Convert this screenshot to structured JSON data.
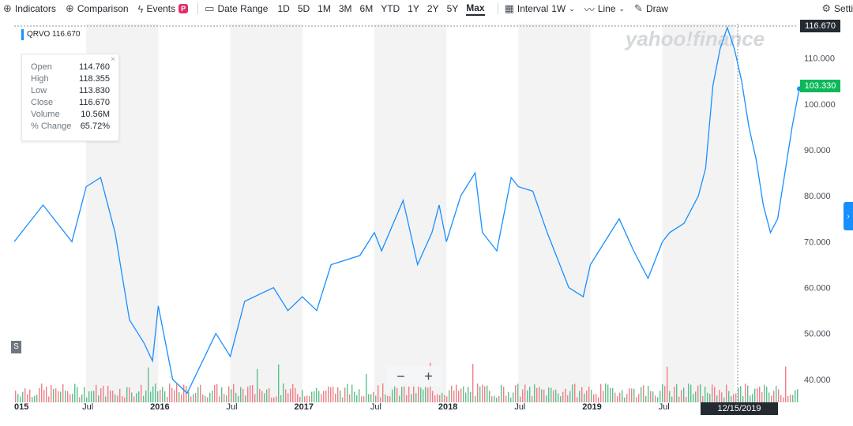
{
  "toolbar": {
    "indicators": "Indicators",
    "comparison": "Comparison",
    "events": "Events",
    "events_badge": "P",
    "date_range": "Date Range",
    "ranges": [
      "1D",
      "5D",
      "1M",
      "3M",
      "6M",
      "YTD",
      "1Y",
      "2Y",
      "5Y",
      "Max"
    ],
    "active_range": "Max",
    "interval_label": "Interval",
    "interval_value": "1W",
    "line_label": "Line",
    "draw_label": "Draw",
    "settings_label": "Setti"
  },
  "icons": {
    "indicators": "plus-circle-icon",
    "comparison": "plus-circle-icon",
    "events": "lightning-icon",
    "date_range": "calendar-icon",
    "interval": "ruler-icon",
    "line": "line-chart-icon",
    "draw": "pencil-icon",
    "settings": "gear-icon"
  },
  "watermark": "yahoo!finance",
  "symbol_label": "QRVO 116.670",
  "ohlc": {
    "open_label": "Open",
    "open": "114.760",
    "high_label": "High",
    "high": "118.355",
    "low_label": "Low",
    "low": "113.830",
    "close_label": "Close",
    "close": "116.670",
    "volume_label": "Volume",
    "volume": "10.56M",
    "change_label": "% Change",
    "change": "65.72%"
  },
  "crosshair_price": "116.670",
  "last_price": "103.330",
  "crosshair_date": "12/15/2019",
  "zoom": {
    "minus": "−",
    "plus": "+"
  },
  "s_tag": "S",
  "colors": {
    "line": "#188fff",
    "band": "#f3f3f4",
    "vol_up": "#5dbf8b",
    "vol_down": "#f07f87",
    "last_price": "#0cb859",
    "accent": "#188fff"
  },
  "chart_data": {
    "type": "line",
    "x_labels": [
      "015",
      "Jul",
      "2016",
      "Jul",
      "2017",
      "Jul",
      "2018",
      "Jul",
      "2019",
      "Jul"
    ],
    "y_ticks": [
      "40.000",
      "50.000",
      "60.000",
      "70.000",
      "80.000",
      "90.000",
      "100.000",
      "110.000"
    ],
    "ylim": [
      35,
      117
    ],
    "series": [
      {
        "x": [
          2015.0,
          2015.2,
          2015.4,
          2015.5,
          2015.6,
          2015.7,
          2015.8,
          2015.9,
          2015.96,
          2016.0,
          2016.1,
          2016.2,
          2016.4,
          2016.5,
          2016.6,
          2016.8,
          2016.9,
          2017.0,
          2017.1,
          2017.2,
          2017.4,
          2017.5,
          2017.55,
          2017.7,
          2017.8,
          2017.9,
          2017.95,
          2018.0,
          2018.1,
          2018.2,
          2018.25,
          2018.35,
          2018.45,
          2018.5,
          2018.6,
          2018.7,
          2018.85,
          2018.95,
          2019.0,
          2019.1,
          2019.2,
          2019.3,
          2019.4,
          2019.5,
          2019.55,
          2019.65,
          2019.75,
          2019.8,
          2019.85,
          2019.9,
          2019.95,
          2020.0,
          2020.05,
          2020.1,
          2020.15,
          2020.2,
          2020.25,
          2020.3,
          2020.35,
          2020.4,
          2020.45
        ],
        "y": [
          70,
          78,
          70,
          82,
          84,
          72,
          53,
          48,
          44,
          56,
          40,
          37,
          50,
          45,
          57,
          60,
          55,
          58,
          55,
          65,
          67,
          72,
          68,
          79,
          65,
          72,
          78,
          70,
          80,
          85,
          72,
          68,
          84,
          82,
          81,
          72,
          60,
          58,
          65,
          70,
          75,
          68,
          62,
          70,
          72,
          74,
          80,
          86,
          104,
          112,
          116.67,
          112,
          105,
          95,
          88,
          78,
          72,
          75,
          85,
          95,
          103.33
        ]
      }
    ]
  }
}
